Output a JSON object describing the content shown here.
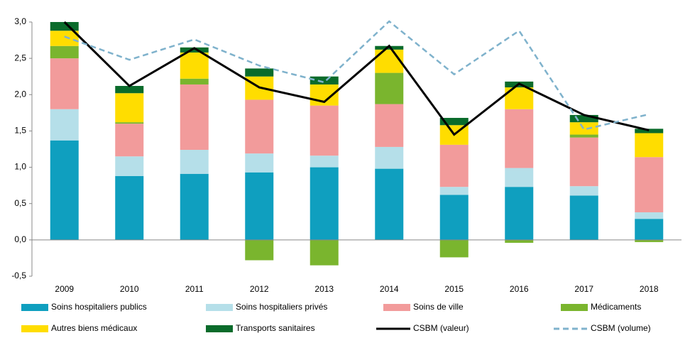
{
  "chart_data": {
    "type": "bar",
    "stacked": true,
    "categories": [
      "2009",
      "2010",
      "2011",
      "2012",
      "2013",
      "2014",
      "2015",
      "2016",
      "2017",
      "2018"
    ],
    "series": [
      {
        "name": "Soins hospitaliers publics",
        "type": "bar",
        "color": "#0f9fbf",
        "values": [
          1.37,
          0.88,
          0.91,
          0.93,
          1.0,
          0.98,
          0.62,
          0.73,
          0.61,
          0.29
        ]
      },
      {
        "name": "Soins hospitaliers privés",
        "type": "bar",
        "color": "#b5dfe9",
        "values": [
          0.43,
          0.27,
          0.33,
          0.26,
          0.16,
          0.3,
          0.11,
          0.26,
          0.13,
          0.09
        ]
      },
      {
        "name": "Soins de ville",
        "type": "bar",
        "color": "#f29b9b",
        "values": [
          0.7,
          0.45,
          0.9,
          0.74,
          0.69,
          0.59,
          0.58,
          0.81,
          0.67,
          0.76
        ]
      },
      {
        "name": "Médicaments",
        "type": "bar",
        "color": "#7ab52e",
        "values": [
          0.17,
          0.02,
          0.08,
          -0.28,
          -0.35,
          0.43,
          -0.24,
          -0.04,
          0.04,
          -0.03
        ]
      },
      {
        "name": "Autres biens médicaux",
        "type": "bar",
        "color": "#ffdd00",
        "values": [
          0.21,
          0.4,
          0.36,
          0.32,
          0.29,
          0.32,
          0.27,
          0.3,
          0.17,
          0.33
        ]
      },
      {
        "name": "Transports sanitaires",
        "type": "bar",
        "color": "#0a6b2b",
        "values": [
          0.12,
          0.1,
          0.07,
          0.11,
          0.11,
          0.05,
          0.1,
          0.08,
          0.1,
          0.06
        ]
      },
      {
        "name": "CSBM (valeur)",
        "type": "line",
        "color": "#000000",
        "values": [
          3.0,
          2.12,
          2.64,
          2.1,
          1.9,
          2.67,
          1.45,
          2.15,
          1.72,
          1.51
        ]
      },
      {
        "name": "CSBM (volume)",
        "type": "line",
        "dashed": true,
        "color": "#7fb2cc",
        "values": [
          2.8,
          2.48,
          2.76,
          2.4,
          2.17,
          3.01,
          2.28,
          2.88,
          1.52,
          1.73
        ]
      }
    ],
    "ylim": [
      -0.5,
      3.0
    ],
    "yticks": [
      {
        "value": -0.5,
        "label": "-0,5"
      },
      {
        "value": 0,
        "label": "0,0"
      },
      {
        "value": 0.5,
        "label": "0,5"
      },
      {
        "value": 1.0,
        "label": "1,0"
      },
      {
        "value": 1.5,
        "label": "1,5"
      },
      {
        "value": 2.0,
        "label": "2,0"
      },
      {
        "value": 2.5,
        "label": "2,5"
      },
      {
        "value": 3.0,
        "label": "3,0"
      }
    ],
    "grid": false,
    "legend": "bottom"
  }
}
